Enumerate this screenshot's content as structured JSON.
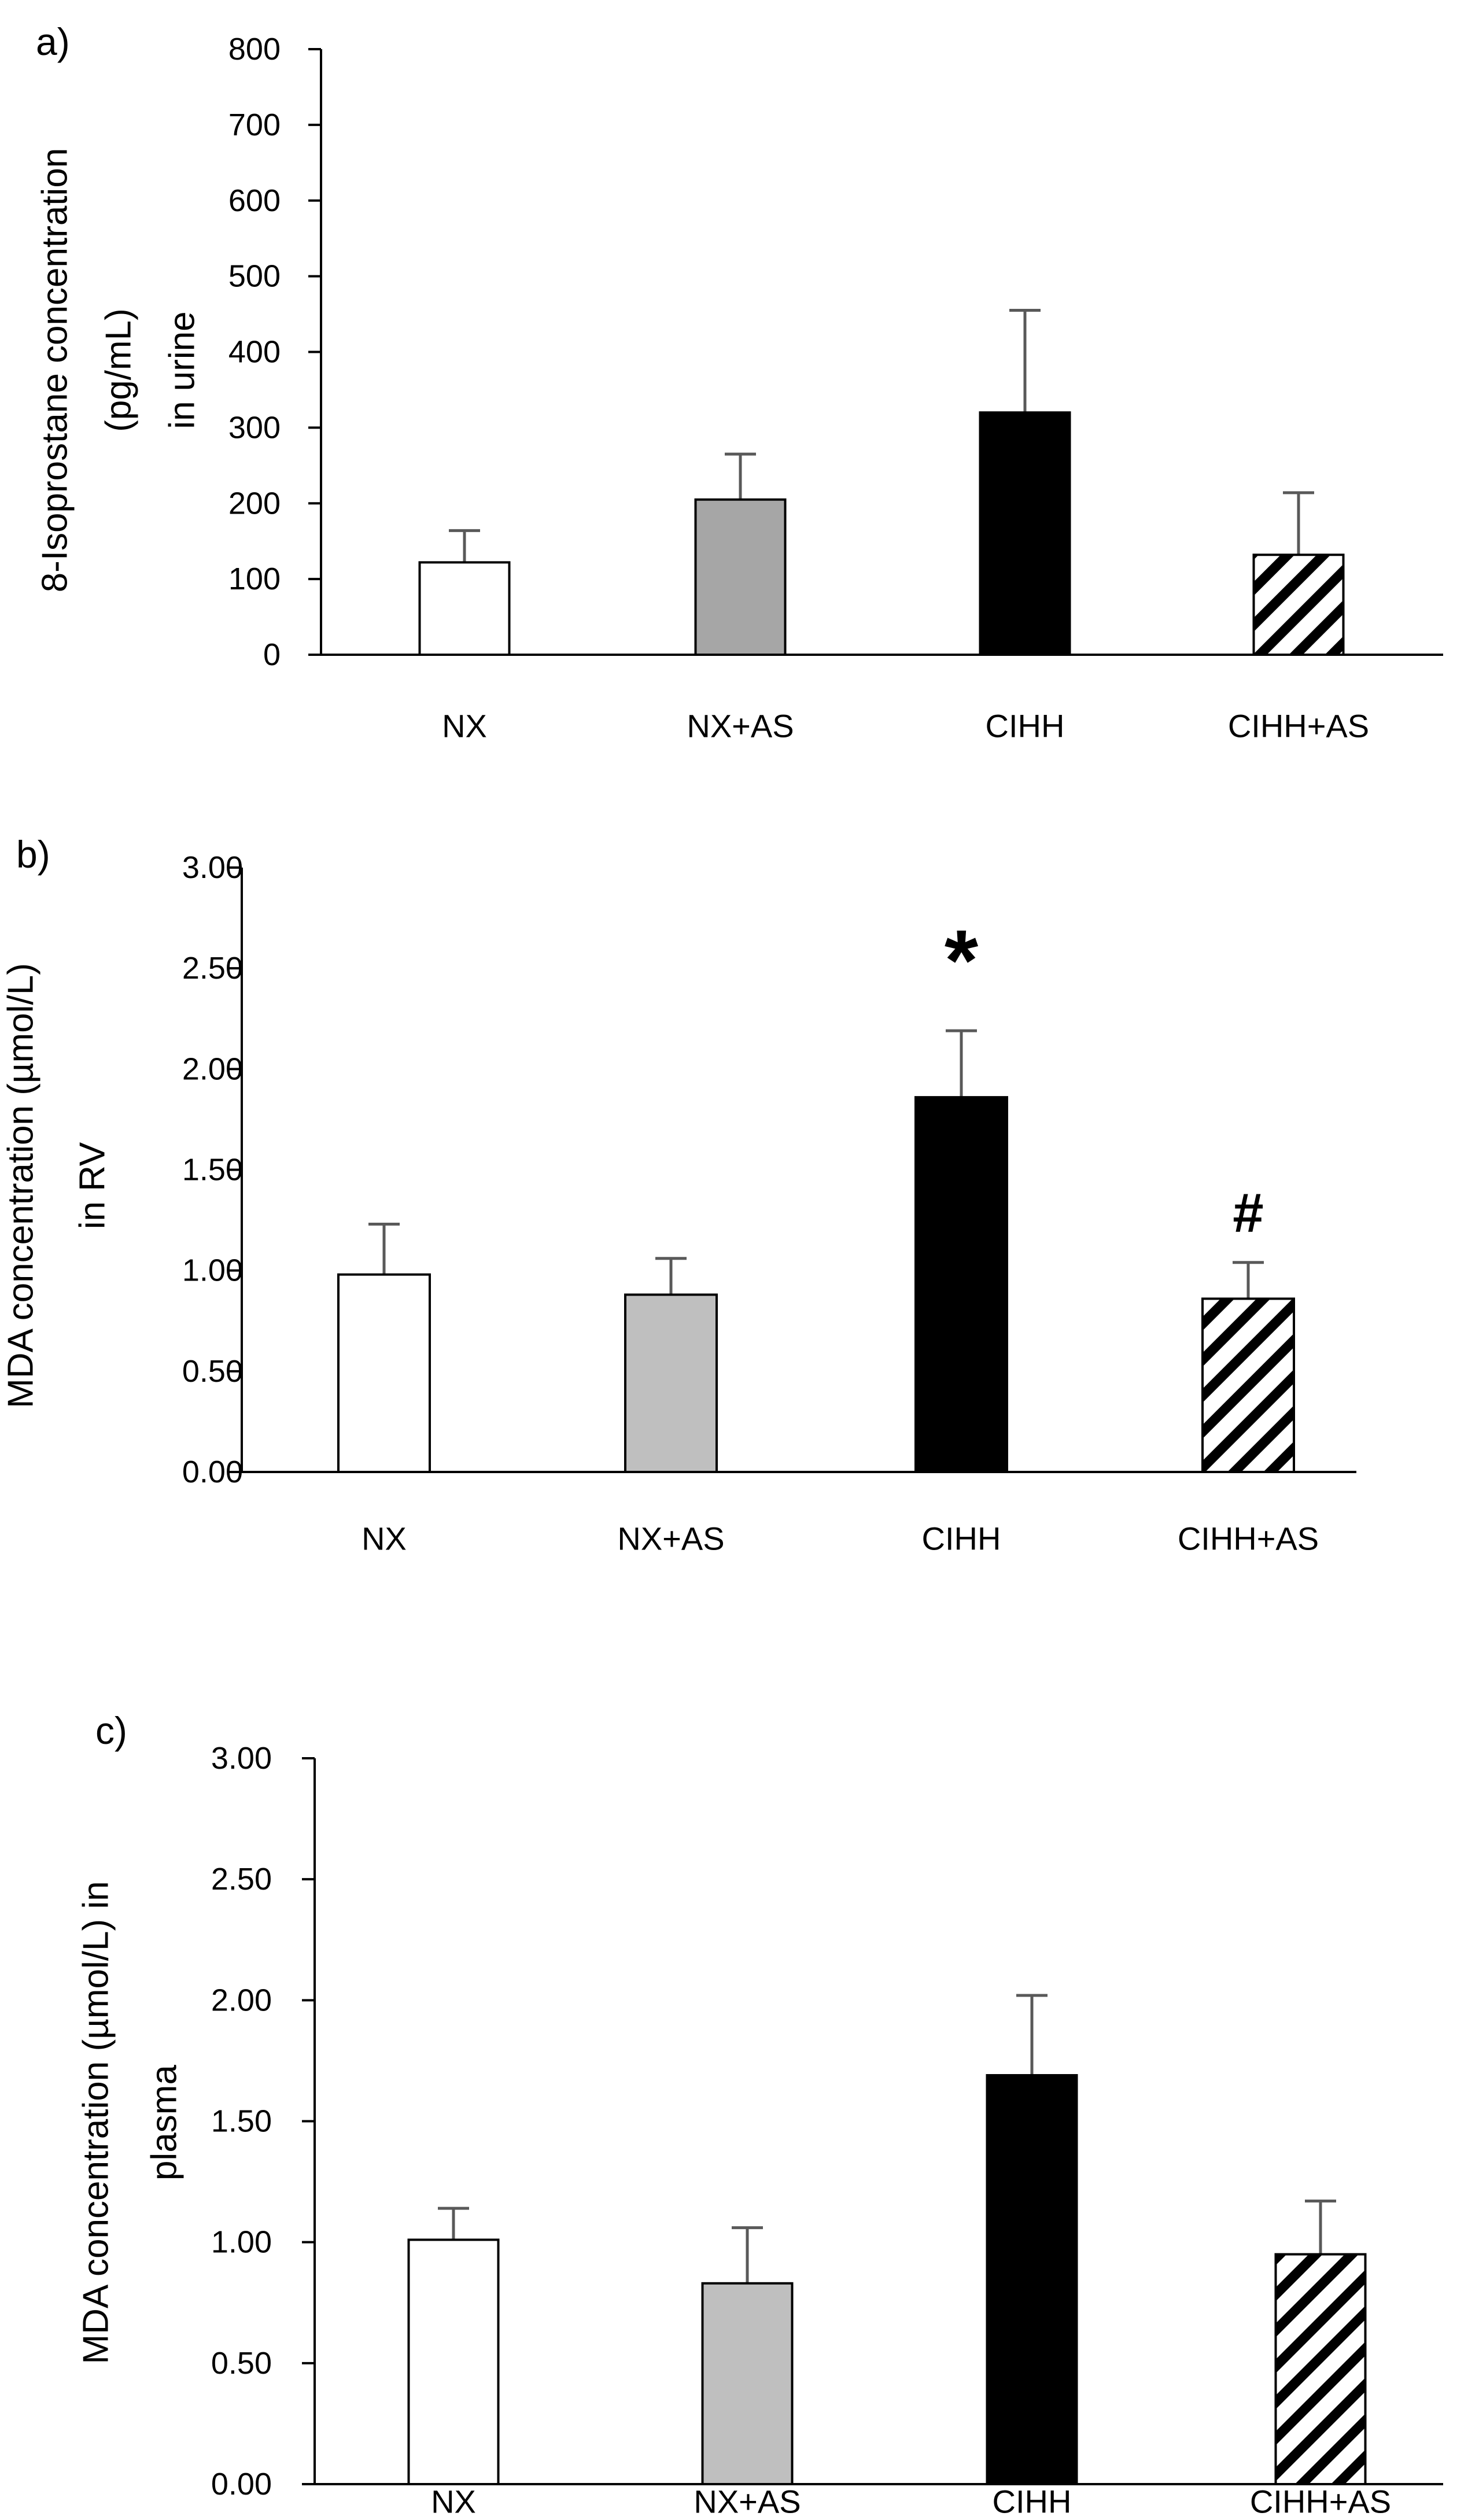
{
  "chart_data": [
    {
      "type": "bar",
      "panel_label": "a)",
      "ylabel_lines": [
        "8-Isoprostane concentration",
        "(pg/mL)",
        "in urine"
      ],
      "categories": [
        "NX",
        "NX+AS",
        "CIHH",
        "CIHH+AS"
      ],
      "values": [
        122,
        205,
        320,
        132
      ],
      "errors": [
        42,
        60,
        135,
        82
      ],
      "ylim": [
        0,
        800
      ],
      "yticks": [
        0,
        100,
        200,
        300,
        400,
        500,
        600,
        700,
        800
      ],
      "ytick_labels": [
        "0",
        "100",
        "200",
        "300",
        "400",
        "500",
        "600",
        "700",
        "800"
      ],
      "fills": [
        "#ffffff",
        "#a6a6a6",
        "#000000",
        "hatch"
      ],
      "annotations": [],
      "grid": false
    },
    {
      "type": "bar",
      "panel_label": "b)",
      "ylabel_lines": [
        "MDA concentration (µmol/L)",
        "in RV"
      ],
      "categories": [
        "NX",
        "NX+AS",
        "CIHH",
        "CIHH+AS"
      ],
      "values": [
        0.98,
        0.88,
        1.86,
        0.86
      ],
      "errors": [
        0.25,
        0.18,
        0.33,
        0.18
      ],
      "ylim": [
        0,
        3.0
      ],
      "yticks": [
        0,
        0.5,
        1.0,
        1.5,
        2.0,
        2.5,
        3.0
      ],
      "ytick_labels": [
        "0.00",
        "0.50",
        "1.00",
        "1.50",
        "2.00",
        "2.50",
        "3.00"
      ],
      "fills": [
        "#ffffff",
        "#bfbfbf",
        "#000000",
        "hatch"
      ],
      "annotations": [
        {
          "category_index": 2,
          "text": "*"
        },
        {
          "category_index": 3,
          "text": "#"
        }
      ],
      "grid": false
    },
    {
      "type": "bar",
      "panel_label": "c)",
      "ylabel_lines": [
        "MDA concentration (µmol/L) in",
        "plasma"
      ],
      "categories": [
        "NX",
        "NX+AS",
        "CIHH",
        "CIHH+AS"
      ],
      "values": [
        1.01,
        0.83,
        1.69,
        0.95
      ],
      "errors": [
        0.13,
        0.23,
        0.33,
        0.22
      ],
      "ylim": [
        0,
        3.0
      ],
      "yticks": [
        0,
        0.5,
        1.0,
        1.5,
        2.0,
        2.5,
        3.0
      ],
      "ytick_labels": [
        "0.00",
        "0.50",
        "1.00",
        "1.50",
        "2.00",
        "2.50",
        "3.00"
      ],
      "fills": [
        "#ffffff",
        "#bfbfbf",
        "#000000",
        "hatch"
      ],
      "annotations": [],
      "grid": false
    }
  ]
}
